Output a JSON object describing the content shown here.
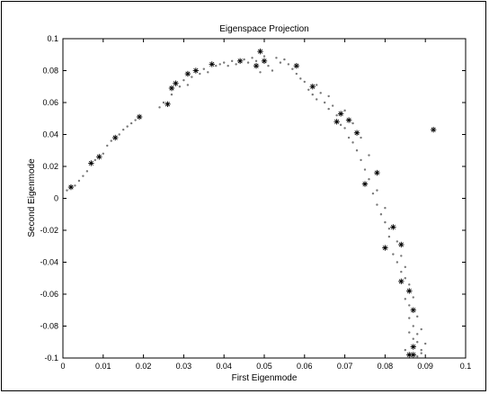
{
  "chart_data": {
    "type": "scatter",
    "title": "Eigenspace Projection",
    "xlabel": "First Eigenmode",
    "ylabel": "Second Eigenmode",
    "xlim": [
      0,
      0.1
    ],
    "ylim": [
      -0.1,
      0.1
    ],
    "xticks": [
      "0",
      "0.01",
      "0.02",
      "0.03",
      "0.04",
      "0.05",
      "0.06",
      "0.07",
      "0.08",
      "0.09",
      "0.1"
    ],
    "yticks": [
      "0.1",
      "0.08",
      "0.06",
      "0.04",
      "0.02",
      "0",
      "-0.02",
      "-0.04",
      "-0.06",
      "-0.08",
      "-0.1"
    ],
    "grid": false,
    "series": [
      {
        "marker": "asterisk",
        "color": "#000000",
        "points": [
          [
            0.002,
            0.007
          ],
          [
            0.007,
            0.022
          ],
          [
            0.009,
            0.026
          ],
          [
            0.013,
            0.038
          ],
          [
            0.019,
            0.051
          ],
          [
            0.026,
            0.059
          ],
          [
            0.027,
            0.069
          ],
          [
            0.028,
            0.072
          ],
          [
            0.031,
            0.078
          ],
          [
            0.033,
            0.08
          ],
          [
            0.037,
            0.084
          ],
          [
            0.044,
            0.086
          ],
          [
            0.048,
            0.083
          ],
          [
            0.049,
            0.092
          ],
          [
            0.05,
            0.086
          ],
          [
            0.058,
            0.083
          ],
          [
            0.062,
            0.07
          ],
          [
            0.068,
            0.048
          ],
          [
            0.069,
            0.053
          ],
          [
            0.071,
            0.049
          ],
          [
            0.073,
            0.041
          ],
          [
            0.075,
            0.009
          ],
          [
            0.078,
            0.016
          ],
          [
            0.08,
            -0.031
          ],
          [
            0.082,
            -0.018
          ],
          [
            0.084,
            -0.029
          ],
          [
            0.084,
            -0.052
          ],
          [
            0.086,
            -0.058
          ],
          [
            0.087,
            -0.07
          ],
          [
            0.086,
            -0.098
          ],
          [
            0.087,
            -0.093
          ],
          [
            0.087,
            -0.098
          ],
          [
            0.092,
            0.043
          ]
        ]
      },
      {
        "marker": "dot",
        "color": "#777777",
        "points": [
          [
            0.001,
            0.005
          ],
          [
            0.003,
            0.008
          ],
          [
            0.004,
            0.011
          ],
          [
            0.005,
            0.014
          ],
          [
            0.006,
            0.017
          ],
          [
            0.008,
            0.024
          ],
          [
            0.01,
            0.028
          ],
          [
            0.011,
            0.033
          ],
          [
            0.012,
            0.036
          ],
          [
            0.014,
            0.04
          ],
          [
            0.015,
            0.043
          ],
          [
            0.016,
            0.045
          ],
          [
            0.017,
            0.047
          ],
          [
            0.018,
            0.049
          ],
          [
            0.024,
            0.057
          ],
          [
            0.025,
            0.06
          ],
          [
            0.027,
            0.065
          ],
          [
            0.029,
            0.07
          ],
          [
            0.03,
            0.074
          ],
          [
            0.031,
            0.071
          ],
          [
            0.032,
            0.076
          ],
          [
            0.034,
            0.078
          ],
          [
            0.035,
            0.081
          ],
          [
            0.036,
            0.079
          ],
          [
            0.038,
            0.083
          ],
          [
            0.039,
            0.084
          ],
          [
            0.04,
            0.085
          ],
          [
            0.041,
            0.083
          ],
          [
            0.042,
            0.086
          ],
          [
            0.043,
            0.084
          ],
          [
            0.045,
            0.087
          ],
          [
            0.046,
            0.085
          ],
          [
            0.047,
            0.088
          ],
          [
            0.048,
            0.086
          ],
          [
            0.049,
            0.079
          ],
          [
            0.05,
            0.089
          ],
          [
            0.051,
            0.083
          ],
          [
            0.052,
            0.08
          ],
          [
            0.053,
            0.088
          ],
          [
            0.054,
            0.085
          ],
          [
            0.055,
            0.087
          ],
          [
            0.056,
            0.084
          ],
          [
            0.057,
            0.081
          ],
          [
            0.058,
            0.078
          ],
          [
            0.059,
            0.075
          ],
          [
            0.06,
            0.073
          ],
          [
            0.061,
            0.068
          ],
          [
            0.062,
            0.065
          ],
          [
            0.063,
            0.062
          ],
          [
            0.064,
            0.066
          ],
          [
            0.065,
            0.06
          ],
          [
            0.066,
            0.056
          ],
          [
            0.067,
            0.058
          ],
          [
            0.068,
            0.052
          ],
          [
            0.069,
            0.046
          ],
          [
            0.07,
            0.044
          ],
          [
            0.071,
            0.038
          ],
          [
            0.072,
            0.035
          ],
          [
            0.073,
            0.03
          ],
          [
            0.074,
            0.024
          ],
          [
            0.075,
            0.018
          ],
          [
            0.076,
            0.012
          ],
          [
            0.077,
            0.003
          ],
          [
            0.078,
            -0.004
          ],
          [
            0.079,
            -0.01
          ],
          [
            0.08,
            -0.015
          ],
          [
            0.081,
            -0.024
          ],
          [
            0.082,
            -0.035
          ],
          [
            0.083,
            -0.04
          ],
          [
            0.084,
            -0.046
          ],
          [
            0.085,
            -0.05
          ],
          [
            0.085,
            -0.063
          ],
          [
            0.086,
            -0.067
          ],
          [
            0.086,
            -0.075
          ],
          [
            0.087,
            -0.08
          ],
          [
            0.088,
            -0.085
          ],
          [
            0.088,
            -0.09
          ],
          [
            0.085,
            -0.095
          ],
          [
            0.089,
            -0.097
          ],
          [
            0.088,
            -0.099
          ],
          [
            0.063,
            0.071
          ],
          [
            0.066,
            0.064
          ],
          [
            0.07,
            0.055
          ],
          [
            0.072,
            0.047
          ],
          [
            0.074,
            0.038
          ],
          [
            0.076,
            0.027
          ],
          [
            0.078,
            0.005
          ],
          [
            0.08,
            -0.006
          ],
          [
            0.081,
            -0.019
          ],
          [
            0.083,
            -0.027
          ],
          [
            0.084,
            -0.036
          ],
          [
            0.085,
            -0.043
          ],
          [
            0.086,
            -0.054
          ],
          [
            0.087,
            -0.062
          ],
          [
            0.088,
            -0.074
          ],
          [
            0.089,
            -0.082
          ],
          [
            0.087,
            -0.088
          ],
          [
            0.086,
            -0.084
          ],
          [
            0.09,
            -0.091
          ],
          [
            0.089,
            -0.095
          ]
        ]
      }
    ]
  }
}
